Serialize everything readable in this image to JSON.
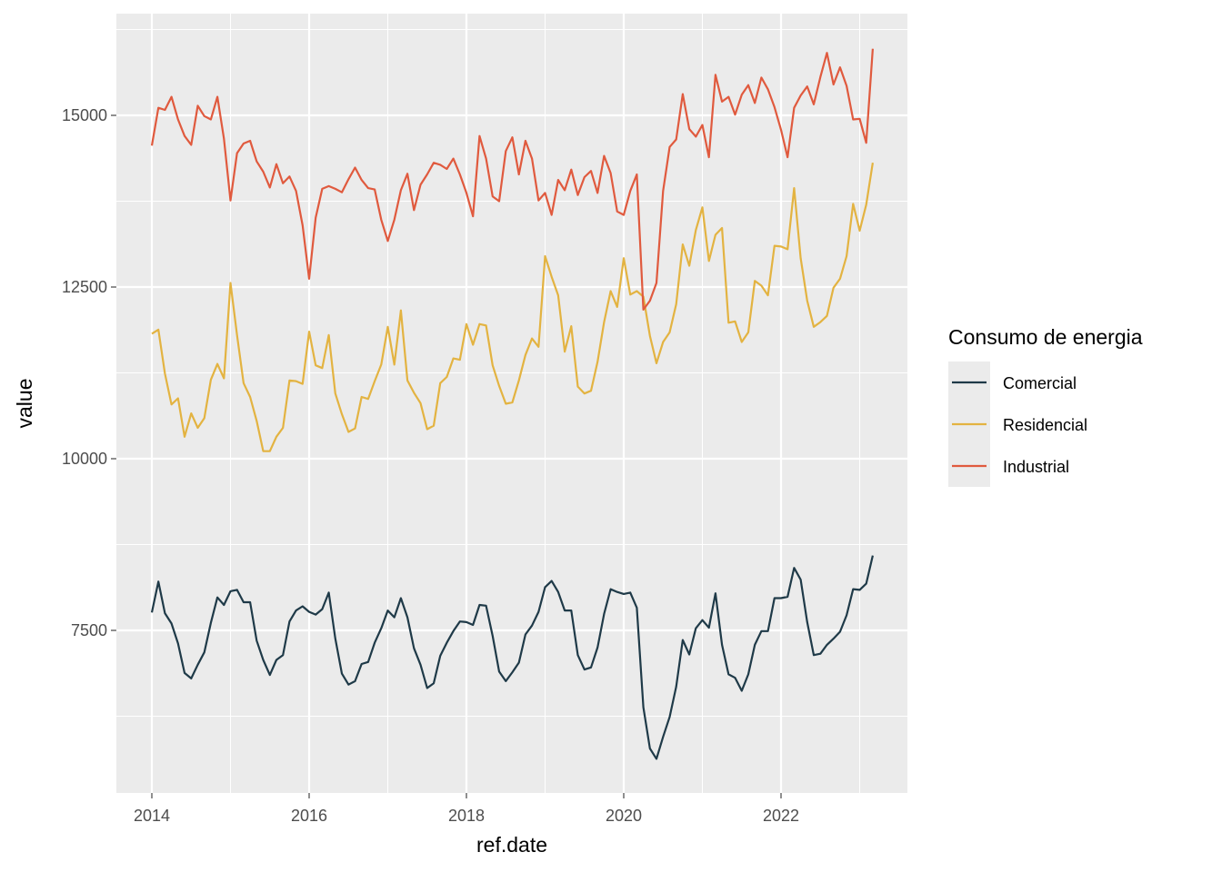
{
  "chart_data": {
    "type": "line",
    "title": "",
    "xlabel": "ref.date",
    "ylabel": "value",
    "x_tick_labels": [
      "2014",
      "2016",
      "2018",
      "2020",
      "2022"
    ],
    "y_tick_labels": [
      "7500",
      "10000",
      "12500",
      "15000"
    ],
    "x_range": [
      "2014-01",
      "2023-03"
    ],
    "ylim": [
      5060,
      16420
    ],
    "grid": true,
    "legend": {
      "title": "Consumo de energia",
      "position": "right"
    },
    "x_start": "2014-01",
    "x_step": "1 month",
    "series": [
      {
        "name": "Comercial",
        "color": "#1f3a48",
        "values": [
          7760,
          8210,
          7750,
          7600,
          7310,
          6880,
          6800,
          7000,
          7180,
          7610,
          7980,
          7870,
          8070,
          8090,
          7910,
          7910,
          7350,
          7070,
          6850,
          7070,
          7140,
          7630,
          7790,
          7850,
          7770,
          7730,
          7810,
          8050,
          7380,
          6870,
          6710,
          6760,
          7010,
          7040,
          7320,
          7530,
          7790,
          7690,
          7970,
          7690,
          7240,
          7000,
          6660,
          6730,
          7130,
          7320,
          7490,
          7630,
          7620,
          7580,
          7870,
          7860,
          7420,
          6900,
          6760,
          6890,
          7030,
          7440,
          7570,
          7770,
          8130,
          8220,
          8060,
          7790,
          7790,
          7140,
          6930,
          6960,
          7250,
          7740,
          8100,
          8060,
          8030,
          8050,
          7830,
          6380,
          5780,
          5630,
          5950,
          6240,
          6680,
          7360,
          7150,
          7530,
          7650,
          7540,
          8040,
          7290,
          6860,
          6810,
          6620,
          6860,
          7290,
          7490,
          7490,
          7970,
          7970,
          7990,
          8410,
          8240,
          7620,
          7140,
          7160,
          7290,
          7380,
          7480,
          7720,
          8100,
          8090,
          8180,
          8590
        ]
      },
      {
        "name": "Residencial",
        "color": "#e3b341",
        "values": [
          11820,
          11880,
          11240,
          10790,
          10880,
          10320,
          10660,
          10450,
          10590,
          11150,
          11380,
          11170,
          12560,
          11800,
          11100,
          10900,
          10550,
          10110,
          10110,
          10320,
          10450,
          11140,
          11130,
          11090,
          11850,
          11360,
          11320,
          11800,
          10950,
          10650,
          10390,
          10440,
          10900,
          10870,
          11130,
          11370,
          11920,
          11370,
          12160,
          11140,
          10960,
          10810,
          10430,
          10480,
          11100,
          11190,
          11460,
          11440,
          11960,
          11660,
          11960,
          11940,
          11360,
          11060,
          10800,
          10820,
          11140,
          11510,
          11750,
          11630,
          12950,
          12650,
          12380,
          11560,
          11930,
          11050,
          10950,
          10990,
          11410,
          11990,
          12440,
          12210,
          12920,
          12390,
          12440,
          12360,
          11790,
          11390,
          11700,
          11840,
          12250,
          13120,
          12810,
          13330,
          13660,
          12880,
          13260,
          13360,
          11980,
          12000,
          11700,
          11840,
          12590,
          12520,
          12380,
          13100,
          13090,
          13050,
          13940,
          12920,
          12300,
          11920,
          11990,
          12080,
          12490,
          12620,
          12950,
          13710,
          13320,
          13700,
          14310
        ]
      },
      {
        "name": "Industrial",
        "color": "#e05a3e",
        "values": [
          14560,
          15110,
          15080,
          15270,
          14940,
          14700,
          14570,
          15140,
          14990,
          14940,
          15270,
          14660,
          13760,
          14450,
          14590,
          14630,
          14330,
          14180,
          13950,
          14290,
          14010,
          14110,
          13900,
          13400,
          12620,
          13510,
          13930,
          13970,
          13930,
          13880,
          14070,
          14240,
          14060,
          13940,
          13920,
          13480,
          13170,
          13480,
          13910,
          14150,
          13620,
          13990,
          14140,
          14310,
          14280,
          14220,
          14370,
          14140,
          13870,
          13530,
          14700,
          14370,
          13820,
          13750,
          14480,
          14680,
          14140,
          14630,
          14370,
          13760,
          13870,
          13550,
          14060,
          13910,
          14210,
          13840,
          14100,
          14190,
          13870,
          14410,
          14160,
          13600,
          13550,
          13900,
          14140,
          12170,
          12300,
          12560,
          13900,
          14540,
          14650,
          15310,
          14800,
          14690,
          14860,
          14390,
          15590,
          15200,
          15270,
          15010,
          15300,
          15440,
          15180,
          15550,
          15380,
          15120,
          14790,
          14390,
          15110,
          15290,
          15420,
          15160,
          15560,
          15910,
          15450,
          15700,
          15430,
          14940,
          14950,
          14600,
          15970
        ]
      }
    ]
  }
}
